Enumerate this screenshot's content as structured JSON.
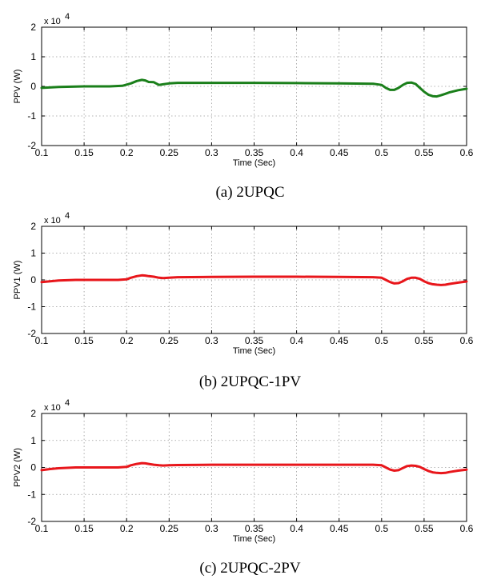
{
  "chart_data": [
    {
      "type": "line",
      "caption": "(a) 2UPQC",
      "ylabel": "PPV (W)",
      "xlabel": "Time (Sec)",
      "multiplier": "x 10",
      "multiplier_exp": "4",
      "xlim": [
        0.1,
        0.6
      ],
      "ylim": [
        -2,
        2
      ],
      "xticks": [
        "0.1",
        "0.15",
        "0.2",
        "0.25",
        "0.3",
        "0.35",
        "0.4",
        "0.45",
        "0.5",
        "0.55",
        "0.6"
      ],
      "yticks": [
        "-2",
        "-1",
        "0",
        "1",
        "2"
      ],
      "grid": true,
      "color": "#1a7f1a",
      "series": [
        {
          "x": [
            0.1,
            0.12,
            0.15,
            0.18,
            0.195,
            0.205,
            0.212,
            0.218,
            0.222,
            0.226,
            0.232,
            0.238,
            0.243,
            0.25,
            0.26,
            0.3,
            0.35,
            0.4,
            0.45,
            0.49,
            0.5,
            0.505,
            0.51,
            0.515,
            0.52,
            0.525,
            0.53,
            0.535,
            0.54,
            0.545,
            0.55,
            0.555,
            0.56,
            0.565,
            0.57,
            0.575,
            0.58,
            0.59,
            0.6
          ],
          "y": [
            -0.05,
            -0.02,
            0.0,
            0.0,
            0.02,
            0.1,
            0.18,
            0.22,
            0.2,
            0.15,
            0.14,
            0.05,
            0.07,
            0.1,
            0.12,
            0.12,
            0.12,
            0.11,
            0.1,
            0.09,
            0.05,
            -0.05,
            -0.12,
            -0.12,
            -0.05,
            0.05,
            0.12,
            0.13,
            0.08,
            -0.05,
            -0.18,
            -0.28,
            -0.33,
            -0.34,
            -0.3,
            -0.25,
            -0.2,
            -0.13,
            -0.08
          ]
        }
      ]
    },
    {
      "type": "line",
      "caption": "(b) 2UPQC-1PV",
      "ylabel": "PPV1 (W)",
      "xlabel": "Time (Sec)",
      "multiplier": "x 10",
      "multiplier_exp": "4",
      "xlim": [
        0.1,
        0.6
      ],
      "ylim": [
        -2,
        2
      ],
      "xticks": [
        "0.1",
        "0.15",
        "0.2",
        "0.25",
        "0.3",
        "0.35",
        "0.4",
        "0.45",
        "0.5",
        "0.55",
        "0.6"
      ],
      "yticks": [
        "-2",
        "-1",
        "0",
        "1",
        "2"
      ],
      "grid": true,
      "color": "#e8161b",
      "series": [
        {
          "x": [
            0.1,
            0.11,
            0.12,
            0.14,
            0.16,
            0.19,
            0.2,
            0.205,
            0.212,
            0.218,
            0.222,
            0.226,
            0.232,
            0.238,
            0.243,
            0.25,
            0.26,
            0.3,
            0.35,
            0.4,
            0.45,
            0.49,
            0.5,
            0.505,
            0.51,
            0.515,
            0.52,
            0.525,
            0.53,
            0.535,
            0.54,
            0.545,
            0.55,
            0.555,
            0.56,
            0.565,
            0.57,
            0.575,
            0.58,
            0.59,
            0.6
          ],
          "y": [
            -0.08,
            -0.05,
            -0.02,
            0.0,
            0.0,
            0.0,
            0.02,
            0.08,
            0.14,
            0.17,
            0.16,
            0.14,
            0.12,
            0.08,
            0.07,
            0.08,
            0.1,
            0.11,
            0.12,
            0.12,
            0.11,
            0.1,
            0.08,
            0.0,
            -0.08,
            -0.13,
            -0.12,
            -0.05,
            0.04,
            0.08,
            0.08,
            0.04,
            -0.05,
            -0.12,
            -0.16,
            -0.18,
            -0.19,
            -0.18,
            -0.15,
            -0.1,
            -0.06
          ]
        }
      ]
    },
    {
      "type": "line",
      "caption": "(c) 2UPQC-2PV",
      "ylabel": "PPV2 (W)",
      "xlabel": "Time (Sec)",
      "multiplier": "x 10",
      "multiplier_exp": "4",
      "xlim": [
        0.1,
        0.6
      ],
      "ylim": [
        -2,
        2
      ],
      "xticks": [
        "0.1",
        "0.15",
        "0.2",
        "0.25",
        "0.3",
        "0.35",
        "0.4",
        "0.45",
        "0.5",
        "0.55",
        "0.6"
      ],
      "yticks": [
        "-2",
        "-1",
        "0",
        "1",
        "2"
      ],
      "grid": true,
      "color": "#e8161b",
      "series": [
        {
          "x": [
            0.1,
            0.11,
            0.12,
            0.14,
            0.16,
            0.19,
            0.2,
            0.205,
            0.212,
            0.218,
            0.222,
            0.226,
            0.232,
            0.238,
            0.243,
            0.25,
            0.26,
            0.3,
            0.35,
            0.4,
            0.45,
            0.49,
            0.5,
            0.505,
            0.51,
            0.515,
            0.52,
            0.525,
            0.53,
            0.535,
            0.54,
            0.545,
            0.55,
            0.555,
            0.56,
            0.565,
            0.57,
            0.575,
            0.58,
            0.59,
            0.6
          ],
          "y": [
            -0.1,
            -0.06,
            -0.03,
            0.0,
            0.0,
            0.0,
            0.02,
            0.08,
            0.13,
            0.16,
            0.15,
            0.13,
            0.1,
            0.08,
            0.07,
            0.08,
            0.09,
            0.1,
            0.1,
            0.1,
            0.1,
            0.1,
            0.08,
            0.0,
            -0.08,
            -0.12,
            -0.1,
            -0.02,
            0.05,
            0.07,
            0.06,
            0.02,
            -0.06,
            -0.13,
            -0.18,
            -0.2,
            -0.21,
            -0.2,
            -0.17,
            -0.12,
            -0.08
          ]
        }
      ]
    }
  ]
}
